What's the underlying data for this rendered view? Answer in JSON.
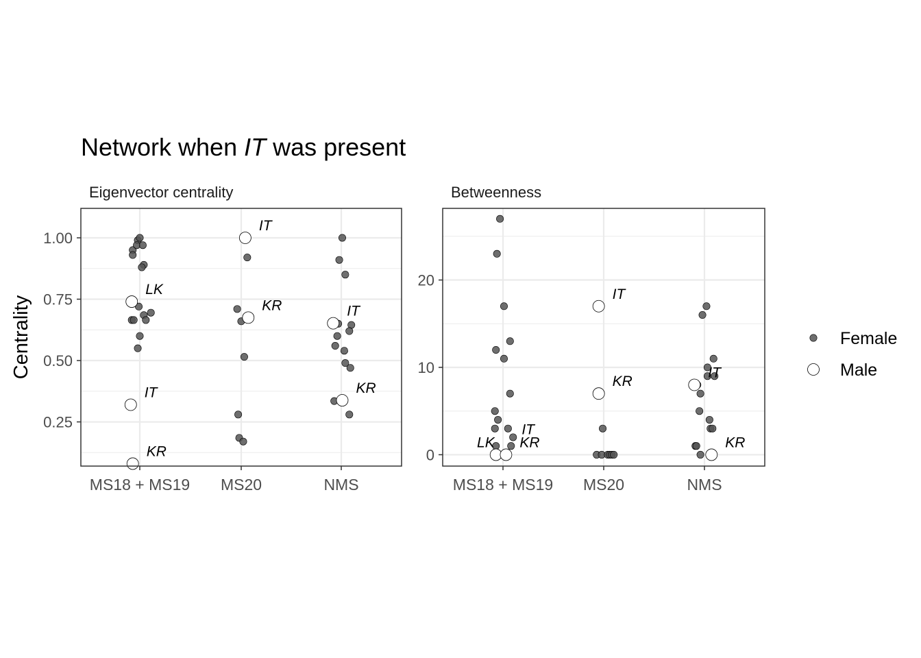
{
  "title": {
    "prefix": "Network when ",
    "italic": "IT",
    "suffix": " was present"
  },
  "ylabel": "Centrality",
  "legend": {
    "items": [
      {
        "label": "Female",
        "fill": "#555555",
        "stroke": "#000000"
      },
      {
        "label": "Male",
        "fill": "#ffffff",
        "stroke": "#000000"
      }
    ]
  },
  "chart_data": [
    {
      "type": "scatter",
      "title": "Eigenvector centrality",
      "categories": [
        "MS18 + MS19",
        "MS20",
        "NMS"
      ],
      "ylim": [
        0.07,
        1.12
      ],
      "yticks": [
        0.25,
        0.5,
        0.75,
        1.0
      ],
      "ytick_labels": [
        "0.25",
        "0.50",
        "0.75",
        "1.00"
      ],
      "grid": true,
      "points": [
        {
          "cat": 0,
          "jitter": -0.07,
          "y": 0.95,
          "sex": "Female"
        },
        {
          "cat": 0,
          "jitter": -0.07,
          "y": 0.93,
          "sex": "Female"
        },
        {
          "cat": 0,
          "jitter": -0.02,
          "y": 0.99,
          "sex": "Female"
        },
        {
          "cat": 0,
          "jitter": 0.0,
          "y": 1.0,
          "sex": "Female"
        },
        {
          "cat": 0,
          "jitter": -0.03,
          "y": 0.97,
          "sex": "Female"
        },
        {
          "cat": 0,
          "jitter": 0.03,
          "y": 0.97,
          "sex": "Female"
        },
        {
          "cat": 0,
          "jitter": 0.04,
          "y": 0.89,
          "sex": "Female"
        },
        {
          "cat": 0,
          "jitter": 0.02,
          "y": 0.88,
          "sex": "Female"
        },
        {
          "cat": 0,
          "jitter": -0.01,
          "y": 0.72,
          "sex": "Female"
        },
        {
          "cat": 0,
          "jitter": 0.11,
          "y": 0.695,
          "sex": "Female"
        },
        {
          "cat": 0,
          "jitter": 0.04,
          "y": 0.685,
          "sex": "Female"
        },
        {
          "cat": 0,
          "jitter": -0.08,
          "y": 0.665,
          "sex": "Female"
        },
        {
          "cat": 0,
          "jitter": -0.06,
          "y": 0.665,
          "sex": "Female"
        },
        {
          "cat": 0,
          "jitter": 0.06,
          "y": 0.665,
          "sex": "Female"
        },
        {
          "cat": 0,
          "jitter": 0.0,
          "y": 0.6,
          "sex": "Female"
        },
        {
          "cat": 0,
          "jitter": -0.02,
          "y": 0.55,
          "sex": "Female"
        },
        {
          "cat": 0,
          "jitter": -0.08,
          "y": 0.74,
          "sex": "Male",
          "label": "LK"
        },
        {
          "cat": 0,
          "jitter": -0.09,
          "y": 0.32,
          "sex": "Male",
          "label": "IT"
        },
        {
          "cat": 0,
          "jitter": -0.07,
          "y": 0.08,
          "sex": "Male",
          "label": "KR"
        },
        {
          "cat": 1,
          "jitter": 0.06,
          "y": 0.92,
          "sex": "Female"
        },
        {
          "cat": 1,
          "jitter": -0.04,
          "y": 0.71,
          "sex": "Female"
        },
        {
          "cat": 1,
          "jitter": 0.0,
          "y": 0.66,
          "sex": "Female"
        },
        {
          "cat": 1,
          "jitter": 0.03,
          "y": 0.515,
          "sex": "Female"
        },
        {
          "cat": 1,
          "jitter": -0.03,
          "y": 0.28,
          "sex": "Female"
        },
        {
          "cat": 1,
          "jitter": -0.02,
          "y": 0.185,
          "sex": "Female"
        },
        {
          "cat": 1,
          "jitter": 0.02,
          "y": 0.17,
          "sex": "Female"
        },
        {
          "cat": 1,
          "jitter": 0.04,
          "y": 1.0,
          "sex": "Male",
          "label": "IT"
        },
        {
          "cat": 1,
          "jitter": 0.07,
          "y": 0.675,
          "sex": "Male",
          "label": "KR"
        },
        {
          "cat": 2,
          "jitter": 0.01,
          "y": 1.0,
          "sex": "Female"
        },
        {
          "cat": 2,
          "jitter": -0.02,
          "y": 0.91,
          "sex": "Female"
        },
        {
          "cat": 2,
          "jitter": 0.04,
          "y": 0.85,
          "sex": "Female"
        },
        {
          "cat": 2,
          "jitter": -0.03,
          "y": 0.65,
          "sex": "Female"
        },
        {
          "cat": 2,
          "jitter": 0.1,
          "y": 0.645,
          "sex": "Female"
        },
        {
          "cat": 2,
          "jitter": 0.08,
          "y": 0.62,
          "sex": "Female"
        },
        {
          "cat": 2,
          "jitter": -0.04,
          "y": 0.6,
          "sex": "Female"
        },
        {
          "cat": 2,
          "jitter": -0.06,
          "y": 0.56,
          "sex": "Female"
        },
        {
          "cat": 2,
          "jitter": 0.03,
          "y": 0.54,
          "sex": "Female"
        },
        {
          "cat": 2,
          "jitter": 0.04,
          "y": 0.49,
          "sex": "Female"
        },
        {
          "cat": 2,
          "jitter": 0.09,
          "y": 0.47,
          "sex": "Female"
        },
        {
          "cat": 2,
          "jitter": -0.07,
          "y": 0.335,
          "sex": "Female"
        },
        {
          "cat": 2,
          "jitter": 0.08,
          "y": 0.28,
          "sex": "Female"
        },
        {
          "cat": 2,
          "jitter": -0.08,
          "y": 0.652,
          "sex": "Male",
          "label": "IT"
        },
        {
          "cat": 2,
          "jitter": 0.01,
          "y": 0.338,
          "sex": "Male",
          "label": "KR"
        }
      ]
    },
    {
      "type": "scatter",
      "title": "Betweenness",
      "categories": [
        "MS18 + MS19",
        "MS20",
        "NMS"
      ],
      "ylim": [
        -1.3,
        28.2
      ],
      "yticks": [
        0,
        10,
        20
      ],
      "ytick_labels": [
        "0",
        "10",
        "20"
      ],
      "grid": true,
      "points": [
        {
          "cat": 0,
          "jitter": -0.03,
          "y": 27,
          "sex": "Female"
        },
        {
          "cat": 0,
          "jitter": -0.06,
          "y": 23,
          "sex": "Female"
        },
        {
          "cat": 0,
          "jitter": 0.01,
          "y": 17,
          "sex": "Female"
        },
        {
          "cat": 0,
          "jitter": 0.07,
          "y": 13,
          "sex": "Female"
        },
        {
          "cat": 0,
          "jitter": -0.07,
          "y": 12,
          "sex": "Female"
        },
        {
          "cat": 0,
          "jitter": 0.01,
          "y": 11,
          "sex": "Female"
        },
        {
          "cat": 0,
          "jitter": 0.07,
          "y": 7,
          "sex": "Female"
        },
        {
          "cat": 0,
          "jitter": -0.08,
          "y": 5,
          "sex": "Female"
        },
        {
          "cat": 0,
          "jitter": -0.05,
          "y": 4,
          "sex": "Female"
        },
        {
          "cat": 0,
          "jitter": -0.08,
          "y": 3,
          "sex": "Female"
        },
        {
          "cat": 0,
          "jitter": 0.05,
          "y": 3,
          "sex": "Female"
        },
        {
          "cat": 0,
          "jitter": 0.1,
          "y": 2,
          "sex": "Female"
        },
        {
          "cat": 0,
          "jitter": -0.07,
          "y": 1,
          "sex": "Female"
        },
        {
          "cat": 0,
          "jitter": 0.08,
          "y": 1,
          "sex": "Female"
        },
        {
          "cat": 0,
          "jitter": 0.03,
          "y": 0,
          "sex": "Female"
        },
        {
          "cat": 0,
          "jitter": -0.07,
          "y": 0,
          "sex": "Male",
          "label": "LK",
          "label_side": "left"
        },
        {
          "cat": 0,
          "jitter": 0.03,
          "y": 0,
          "sex": "Male",
          "label": "KR"
        },
        {
          "cat": 0,
          "jitter": 0.05,
          "y": 1.5,
          "sex": "Male",
          "label": "IT",
          "label_only": true
        },
        {
          "cat": 1,
          "jitter": -0.05,
          "y": 17,
          "sex": "Male",
          "label": "IT"
        },
        {
          "cat": 1,
          "jitter": -0.05,
          "y": 7,
          "sex": "Male",
          "label": "KR"
        },
        {
          "cat": 1,
          "jitter": -0.01,
          "y": 3,
          "sex": "Female"
        },
        {
          "cat": 1,
          "jitter": -0.07,
          "y": 0,
          "sex": "Female"
        },
        {
          "cat": 1,
          "jitter": -0.02,
          "y": 0,
          "sex": "Female"
        },
        {
          "cat": 1,
          "jitter": 0.04,
          "y": 0,
          "sex": "Female"
        },
        {
          "cat": 1,
          "jitter": 0.06,
          "y": 0,
          "sex": "Female"
        },
        {
          "cat": 1,
          "jitter": 0.08,
          "y": 0,
          "sex": "Female"
        },
        {
          "cat": 1,
          "jitter": 0.1,
          "y": 0,
          "sex": "Female"
        },
        {
          "cat": 2,
          "jitter": 0.02,
          "y": 17,
          "sex": "Female"
        },
        {
          "cat": 2,
          "jitter": -0.02,
          "y": 16,
          "sex": "Female"
        },
        {
          "cat": 2,
          "jitter": 0.09,
          "y": 11,
          "sex": "Female"
        },
        {
          "cat": 2,
          "jitter": 0.03,
          "y": 10,
          "sex": "Female"
        },
        {
          "cat": 2,
          "jitter": 0.03,
          "y": 9,
          "sex": "Female"
        },
        {
          "cat": 2,
          "jitter": 0.1,
          "y": 9,
          "sex": "Female"
        },
        {
          "cat": 2,
          "jitter": -0.07,
          "y": 8,
          "sex": "Female"
        },
        {
          "cat": 2,
          "jitter": -0.04,
          "y": 7,
          "sex": "Female"
        },
        {
          "cat": 2,
          "jitter": -0.05,
          "y": 5,
          "sex": "Female"
        },
        {
          "cat": 2,
          "jitter": 0.05,
          "y": 4,
          "sex": "Female"
        },
        {
          "cat": 2,
          "jitter": 0.06,
          "y": 3,
          "sex": "Female"
        },
        {
          "cat": 2,
          "jitter": 0.08,
          "y": 3,
          "sex": "Female"
        },
        {
          "cat": 2,
          "jitter": -0.09,
          "y": 1,
          "sex": "Female"
        },
        {
          "cat": 2,
          "jitter": -0.08,
          "y": 1,
          "sex": "Female"
        },
        {
          "cat": 2,
          "jitter": -0.04,
          "y": 0,
          "sex": "Female"
        },
        {
          "cat": 2,
          "jitter": -0.1,
          "y": 8,
          "sex": "Male",
          "label": "IT"
        },
        {
          "cat": 2,
          "jitter": 0.07,
          "y": 0,
          "sex": "Male",
          "label": "KR"
        }
      ]
    }
  ]
}
